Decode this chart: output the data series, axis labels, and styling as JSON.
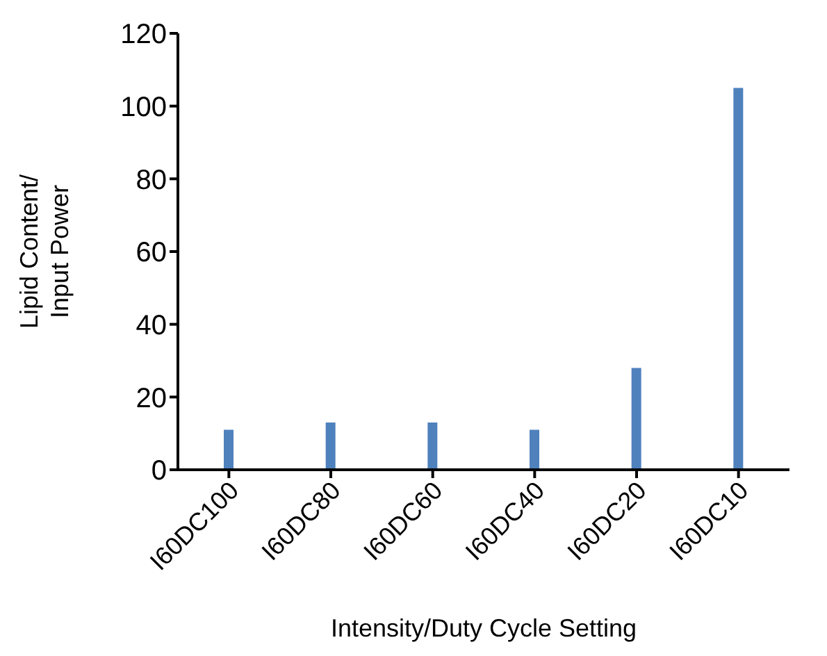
{
  "chart_data": {
    "type": "bar",
    "xlabel": "Intensity/Duty Cycle Setting",
    "ylabel": "Lipid Content/\nInput Power",
    "categories": [
      "I60DC100",
      "I60DC80",
      "I60DC60",
      "I60DC40",
      "I60DC20",
      "I60DC10"
    ],
    "values": [
      11,
      13,
      13,
      11,
      28,
      105
    ],
    "color": "#4f81bd",
    "ylim": [
      0,
      120
    ],
    "yticks": [
      0,
      20,
      40,
      60,
      80,
      100,
      120
    ],
    "grid": false
  }
}
